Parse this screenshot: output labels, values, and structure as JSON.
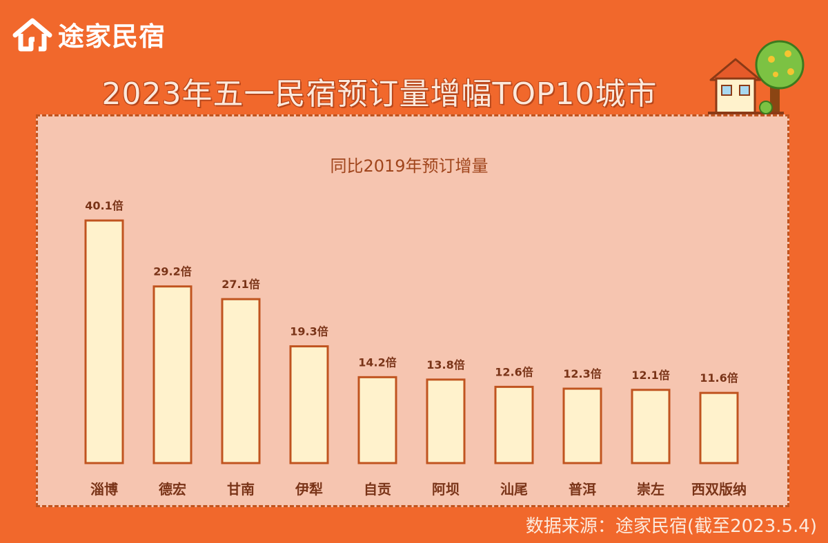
{
  "brand": {
    "name": "途家民宿"
  },
  "header": {
    "title": "2023年五一民宿预订量增幅TOP10城市"
  },
  "footer": {
    "source": "数据来源：途家民宿(截至2023.5.4)"
  },
  "colors": {
    "background": "#F1682C",
    "panel": "#F6C5B0",
    "bar_fill": "#FFF2CC",
    "bar_stroke": "#C0541F",
    "label_text": "#7A3418"
  },
  "chart_data": {
    "type": "bar",
    "title": "同比2019年预订增量",
    "unit_suffix": "倍",
    "categories": [
      "淄博",
      "德宏",
      "甘南",
      "伊犁",
      "自贡",
      "阿坝",
      "汕尾",
      "普洱",
      "崇左",
      "西双版纳"
    ],
    "values": [
      40.1,
      29.2,
      27.1,
      19.3,
      14.2,
      13.8,
      12.6,
      12.3,
      12.1,
      11.6
    ],
    "data_labels": [
      "40.1倍",
      "29.2倍",
      "27.1倍",
      "19.3倍",
      "14.2倍",
      "13.8倍",
      "12.6倍",
      "12.3倍",
      "12.1倍",
      "11.6倍"
    ],
    "ylim": [
      0,
      40.1
    ],
    "grid": false,
    "legend": "none"
  }
}
